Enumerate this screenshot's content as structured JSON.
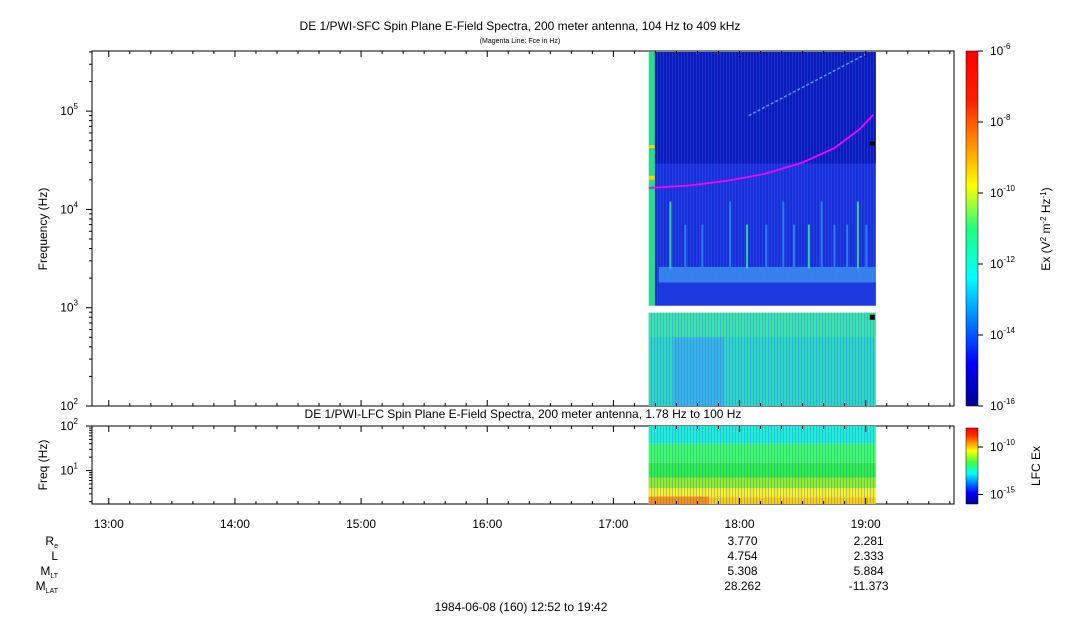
{
  "figure": {
    "title": "DE 1/PWI-SFC  Spin Plane E-Field Spectra, 200 meter antenna, 104 Hz to 409 kHz",
    "subtitle": "(Magenta Line: Fce in Hz)",
    "footer": "1984-06-08 (160) 12:52 to 19:42"
  },
  "chart_data": [
    {
      "type": "heatmap",
      "name": "sfc",
      "title": "DE 1/PWI-SFC  Spin Plane E-Field Spectra, 200 meter antenna, 104 Hz to 409 kHz",
      "subtitle": "(Magenta Line: Fce in Hz)",
      "ylabel": "Frequency (Hz)",
      "yscale": "log",
      "ylim": [
        100,
        409000
      ],
      "yticks": [
        {
          "value": 100,
          "base": "10",
          "exp": "2"
        },
        {
          "value": 1000,
          "base": "10",
          "exp": "3"
        },
        {
          "value": 10000,
          "base": "10",
          "exp": "4"
        },
        {
          "value": 100000,
          "base": "10",
          "exp": "5"
        }
      ],
      "data_start_hour": 17.28,
      "data_end_hour": 19.08,
      "colorbar": {
        "label_parts": [
          "Ex (V",
          "2",
          " m",
          "-2",
          " Hz",
          "-1",
          ")"
        ],
        "scale": "log",
        "range": [
          1e-16,
          1e-06
        ],
        "ticks": [
          {
            "value": 1e-06,
            "base": "10",
            "exp": "-6"
          },
          {
            "value": 1e-08,
            "base": "10",
            "exp": "-8"
          },
          {
            "value": 1e-10,
            "base": "10",
            "exp": "-10"
          },
          {
            "value": 1e-12,
            "base": "10",
            "exp": "-12"
          },
          {
            "value": 1e-14,
            "base": "10",
            "exp": "-14"
          },
          {
            "value": 1e-16,
            "base": "10",
            "exp": "-16"
          }
        ]
      },
      "fce_line": {
        "color": "#ff00ff",
        "points": [
          [
            17.28,
            16500
          ],
          [
            17.6,
            17500
          ],
          [
            17.9,
            19500
          ],
          [
            18.2,
            23000
          ],
          [
            18.5,
            30000
          ],
          [
            18.75,
            42000
          ],
          [
            18.95,
            65000
          ],
          [
            19.06,
            92000
          ]
        ]
      }
    },
    {
      "type": "heatmap",
      "name": "lfc",
      "title": "DE 1/PWI-LFC  Spin Plane E-Field Spectra, 200 meter antenna, 1.78 Hz to 100 Hz",
      "ylabel": "Freq (Hz)",
      "yscale": "log",
      "ylim": [
        1.78,
        100
      ],
      "yticks": [
        {
          "value": 10,
          "base": "10",
          "exp": "1"
        },
        {
          "value": 100,
          "base": "10",
          "exp": "2"
        }
      ],
      "data_start_hour": 17.28,
      "data_end_hour": 19.08,
      "colorbar": {
        "label": "LFC Ex",
        "scale": "log",
        "range": [
          1e-16,
          1e-08
        ],
        "ticks": [
          {
            "value": 1e-10,
            "base": "10",
            "exp": "-10"
          },
          {
            "value": 1e-15,
            "base": "10",
            "exp": "-15"
          }
        ]
      }
    }
  ],
  "x_axis": {
    "range_hours": [
      12.867,
      19.7
    ],
    "ticks": [
      {
        "hour": 13,
        "label": "13:00"
      },
      {
        "hour": 14,
        "label": "14:00"
      },
      {
        "hour": 15,
        "label": "15:00"
      },
      {
        "hour": 16,
        "label": "16:00"
      },
      {
        "hour": 17,
        "label": "17:00"
      },
      {
        "hour": 18,
        "label": "18:00"
      },
      {
        "hour": 19,
        "label": "19:00"
      }
    ]
  },
  "ephemeris": [
    {
      "label": "R",
      "sub": "e",
      "values": [
        "3.770",
        "2.281"
      ]
    },
    {
      "label": "L",
      "sub": "",
      "values": [
        "4.754",
        "2.333"
      ]
    },
    {
      "label": "M",
      "sub": "LT",
      "values": [
        "5.308",
        "5.884"
      ]
    },
    {
      "label": "M",
      "sub": "LAT",
      "values": [
        "28.262",
        "-11.373"
      ]
    }
  ],
  "ephemeris_hours": [
    18,
    19
  ]
}
